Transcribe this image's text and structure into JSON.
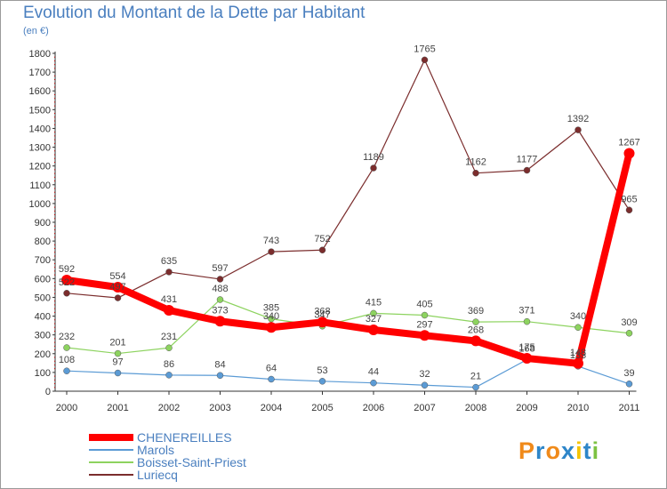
{
  "title": "Evolution du Montant de la Dette par Habitant",
  "subtitle": "(en €)",
  "logo": {
    "text": "Proxiti",
    "letters": [
      "P",
      "r",
      "o",
      "x",
      "i",
      "t",
      "i"
    ],
    "colors": [
      "#f08a1a",
      "#2e86c9",
      "#f08a1a",
      "#2e86c9",
      "#f5c400",
      "#2e86c9",
      "#7cc242"
    ]
  },
  "chart_data": {
    "type": "line",
    "title": "Evolution du Montant de la Dette par Habitant",
    "ylabel": "(en €)",
    "xlabel": "",
    "x": [
      "2000",
      "2001",
      "2002",
      "2003",
      "2004",
      "2005",
      "2006",
      "2007",
      "2008",
      "2009",
      "2010",
      "2011"
    ],
    "ylim": [
      0,
      1800
    ],
    "yticks": [
      "0",
      "100",
      "200",
      "300",
      "400",
      "500",
      "600",
      "700",
      "800",
      "900",
      "1000",
      "1100",
      "1200",
      "1300",
      "1400",
      "1500",
      "1600",
      "1700",
      "1800"
    ],
    "grid": false,
    "legend_position": "bottom-left",
    "series": [
      {
        "name": "CHENEREILLES",
        "color": "#ff0000",
        "values": [
          592,
          554,
          431,
          373,
          340,
          368,
          327,
          297,
          268,
          175,
          148,
          1267
        ],
        "labels": [
          "592",
          "554",
          "431",
          "373",
          "340",
          "368",
          "327",
          "297",
          "268",
          "175",
          "148",
          "1267"
        ]
      },
      {
        "name": "Marols",
        "color": "#5b9bd5",
        "values": [
          108,
          97,
          86,
          84,
          64,
          53,
          44,
          32,
          21,
          168,
          133,
          39
        ],
        "labels": [
          "108",
          "97",
          "86",
          "84",
          "64",
          "53",
          "44",
          "32",
          "21",
          "168",
          "133",
          "39"
        ]
      },
      {
        "name": "Boisset-Saint-Priest",
        "color": "#8dd35f",
        "values": [
          232,
          201,
          231,
          488,
          385,
          347,
          415,
          405,
          369,
          371,
          340,
          309
        ],
        "labels": [
          "232",
          "201",
          "231",
          "488",
          "385",
          "347",
          "415",
          "405",
          "369",
          "371",
          "340",
          "309"
        ]
      },
      {
        "name": "Luriecq",
        "color": "#7b2d2d",
        "values": [
          522,
          497,
          635,
          597,
          743,
          752,
          1189,
          1765,
          1162,
          1177,
          1392,
          965
        ],
        "labels": [
          "522",
          "497",
          "635",
          "597",
          "743",
          "752",
          "1189",
          "1765",
          "1162",
          "1177",
          "1392",
          "965"
        ]
      }
    ]
  }
}
